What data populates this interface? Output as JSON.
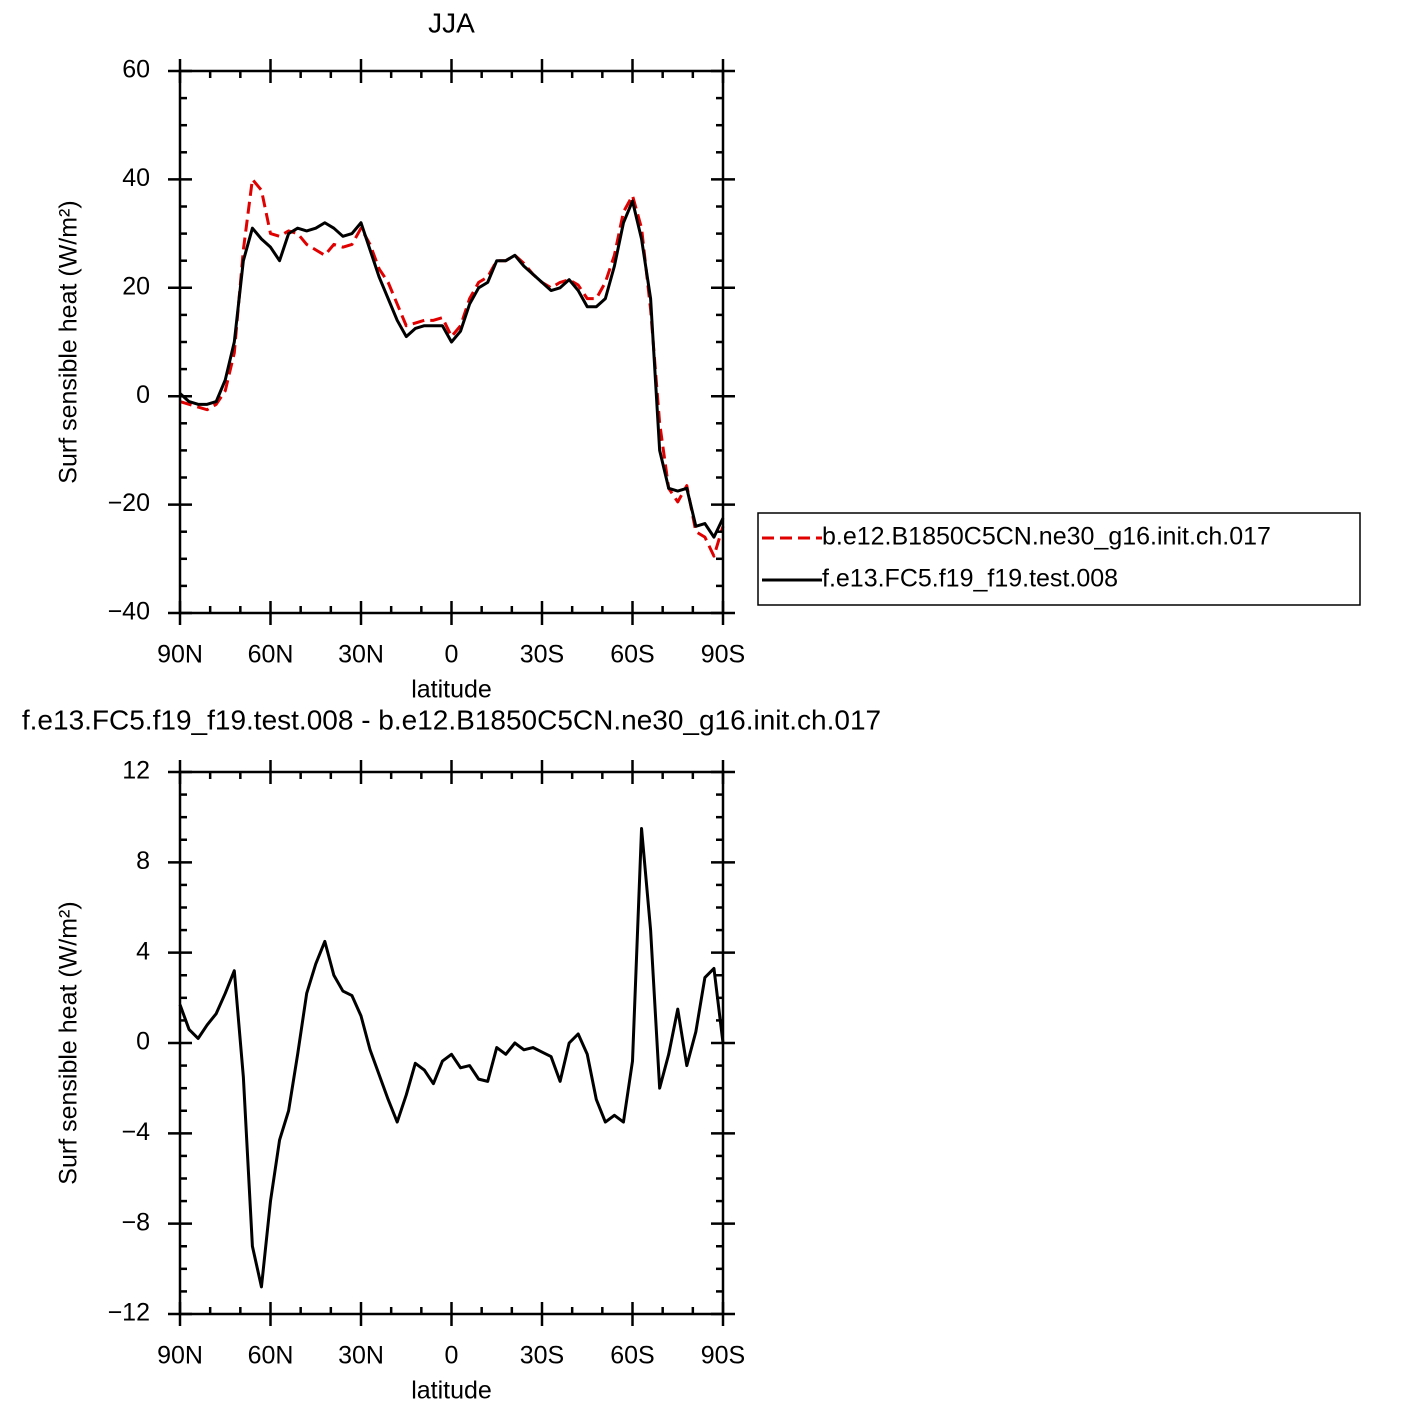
{
  "chart_data": [
    {
      "type": "line",
      "title": "JJA",
      "xlabel": "latitude",
      "ylabel": "Surf sensible heat (W/m²)",
      "x": [
        90,
        87,
        84,
        81,
        78,
        75,
        72,
        69,
        66,
        63,
        60,
        57,
        54,
        51,
        48,
        45,
        42,
        39,
        36,
        33,
        30,
        27,
        24,
        21,
        18,
        15,
        12,
        9,
        6,
        3,
        0,
        -3,
        -6,
        -9,
        -12,
        -15,
        -18,
        -21,
        -24,
        -27,
        -30,
        -33,
        -36,
        -39,
        -42,
        -45,
        -48,
        -51,
        -54,
        -57,
        -60,
        -63,
        -66,
        -69,
        -72,
        -75,
        -78,
        -81,
        -84,
        -87,
        -90
      ],
      "series": [
        {
          "name": "b.e12.B1850C5CN.ne30_g16.init.ch.017",
          "color": "#e00000",
          "line_style": "dashed",
          "values": [
            -1,
            -1.5,
            -2,
            -2.5,
            -1.5,
            1,
            8,
            27,
            40,
            38,
            30,
            29.5,
            30.5,
            30,
            28,
            27,
            26,
            28,
            27.5,
            28,
            31,
            28,
            23.5,
            21,
            17,
            13,
            13.5,
            14,
            14,
            14.5,
            11,
            13,
            18,
            21,
            22,
            25,
            25,
            26,
            24.5,
            22.5,
            21,
            20,
            21,
            21.5,
            20.5,
            18,
            18,
            21,
            26,
            34,
            37,
            31,
            16,
            -5,
            -17,
            -19.5,
            -16.5,
            -25,
            -26,
            -29.5,
            -24
          ]
        },
        {
          "name": "f.e13.FC5.f19_f19.test.008",
          "color": "#000000",
          "line_style": "solid",
          "values": [
            0.5,
            -1,
            -1.5,
            -1.5,
            -1,
            3,
            10,
            25,
            31,
            29,
            27.5,
            25,
            30,
            31,
            30.5,
            31,
            32,
            31,
            29.5,
            30,
            32,
            27,
            22,
            18,
            14,
            11,
            12.5,
            13,
            13,
            13,
            10,
            12,
            17,
            20,
            21,
            25,
            25,
            26,
            24,
            22.5,
            21,
            19.5,
            20,
            21.5,
            19.5,
            16.5,
            16.5,
            18,
            24,
            32,
            36,
            29,
            18,
            -10,
            -17,
            -17.5,
            -17,
            -24,
            -23.5,
            -26,
            -22.5
          ]
        }
      ],
      "xlim": [
        90,
        -90
      ],
      "xticks": [
        {
          "value": 90,
          "label": "90N"
        },
        {
          "value": 60,
          "label": "60N"
        },
        {
          "value": 30,
          "label": "30N"
        },
        0,
        {
          "value": -30,
          "label": "30S"
        },
        {
          "value": -60,
          "label": "60S"
        },
        {
          "value": -90,
          "label": "90S"
        }
      ],
      "ylim": [
        -40,
        60
      ],
      "yticks": [
        {
          "value": -40,
          "label": "−40"
        },
        {
          "value": -20,
          "label": "−20"
        },
        0,
        20,
        40,
        60
      ],
      "legend": "right"
    },
    {
      "type": "line",
      "title": "f.e13.FC5.f19_f19.test.008 - b.e12.B1850C5CN.ne30_g16.init.ch.017",
      "xlabel": "latitude",
      "ylabel": "Surf sensible heat (W/m²)",
      "x": [
        90,
        87,
        84,
        81,
        78,
        75,
        72,
        69,
        66,
        63,
        60,
        57,
        54,
        51,
        48,
        45,
        42,
        39,
        36,
        33,
        30,
        27,
        24,
        21,
        18,
        15,
        12,
        9,
        6,
        3,
        0,
        -3,
        -6,
        -9,
        -12,
        -15,
        -18,
        -21,
        -24,
        -27,
        -30,
        -33,
        -36,
        -39,
        -42,
        -45,
        -48,
        -51,
        -54,
        -57,
        -60,
        -63,
        -66,
        -69,
        -72,
        -75,
        -78,
        -81,
        -84,
        -87,
        -90
      ],
      "series": [
        {
          "color": "#000000",
          "line_style": "solid",
          "values": [
            1.7,
            0.6,
            0.2,
            0.8,
            1.3,
            2.2,
            3.2,
            -1.5,
            -9,
            -10.8,
            -7,
            -4.3,
            -3,
            -0.5,
            2.2,
            3.5,
            4.5,
            3,
            2.3,
            2.1,
            1.2,
            -0.3,
            -1.4,
            -2.5,
            -3.5,
            -2.3,
            -0.9,
            -1.2,
            -1.8,
            -0.8,
            -0.5,
            -1.1,
            -1,
            -1.6,
            -1.7,
            -0.2,
            -0.5,
            0,
            -0.3,
            -0.2,
            -0.4,
            -0.6,
            -1.7,
            0,
            0.4,
            -0.5,
            -2.5,
            -3.5,
            -3.2,
            -3.5,
            -0.8,
            9.5,
            5,
            -2,
            -0.5,
            1.5,
            -1,
            0.5,
            2.9,
            3.3,
            0
          ]
        }
      ],
      "xlim": [
        90,
        -90
      ],
      "xticks": [
        {
          "value": 90,
          "label": "90N"
        },
        {
          "value": 60,
          "label": "60N"
        },
        {
          "value": 30,
          "label": "30N"
        },
        0,
        {
          "value": -30,
          "label": "30S"
        },
        {
          "value": -60,
          "label": "60S"
        },
        {
          "value": -90,
          "label": "90S"
        }
      ],
      "ylim": [
        -12,
        12
      ],
      "yticks": [
        {
          "value": -12,
          "label": "−12"
        },
        {
          "value": -8,
          "label": "−8"
        },
        {
          "value": -4,
          "label": "−4"
        },
        0,
        4,
        8,
        12
      ]
    }
  ]
}
